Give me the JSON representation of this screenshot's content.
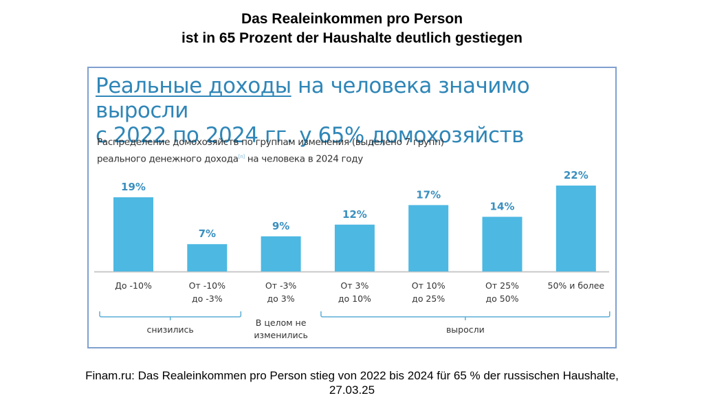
{
  "page": {
    "title_line1": "Das Realeinkommen pro Person",
    "title_line2": "ist in 65 Prozent der Haushalte deutlich gestiegen",
    "caption_line1": "Finam.ru: Das Realeinkommen pro Person stieg von 2022 bis 2024 für 65 % der russischen Haushalte,",
    "caption_line2": "27.03.25"
  },
  "slide": {
    "heading_underlined": "Реальные доходы",
    "heading_rest_line1": " на человека значимо выросли",
    "heading_line2": "с 2022 по 2024 гг. у 65% домохозяйств",
    "subtitle_line1": "Распределение домохозяйств по группам изменения (выделено 7 групп)",
    "subtitle_line2_a": "реального денежного дохода",
    "subtitle_footnote": "[n]",
    "subtitle_line2_b": " на человека в 2024 году"
  },
  "colors": {
    "bar": "#4db8e2",
    "value_label": "#3a8fbf",
    "heading": "#2f86b7",
    "bracket": "#5aaed6",
    "frame_border": "#7f9fcf"
  },
  "chart_data": {
    "type": "bar",
    "title": "Распределение домохозяйств по группам изменения реального денежного дохода на человека в 2024 году",
    "xlabel": "",
    "ylabel": "",
    "ylim": [
      0,
      22
    ],
    "grid": false,
    "categories": [
      [
        "До -10%"
      ],
      [
        "От -10%",
        "до -3%"
      ],
      [
        "От -3%",
        "до 3%"
      ],
      [
        "От 3%",
        "до 10%"
      ],
      [
        "От 10%",
        "до 25%"
      ],
      [
        "От 25%",
        "до 50%"
      ],
      [
        "50% и более"
      ]
    ],
    "values": [
      19,
      7,
      9,
      12,
      17,
      14,
      22
    ],
    "data_labels": [
      "19%",
      "7%",
      "9%",
      "12%",
      "17%",
      "14%",
      "22%"
    ],
    "groups": [
      {
        "label": [
          "снизились"
        ],
        "from": 0,
        "to": 1
      },
      {
        "label": [
          "В целом не",
          "изменились"
        ],
        "from": 2,
        "to": 2
      },
      {
        "label": [
          "выросли"
        ],
        "from": 3,
        "to": 6
      }
    ]
  }
}
